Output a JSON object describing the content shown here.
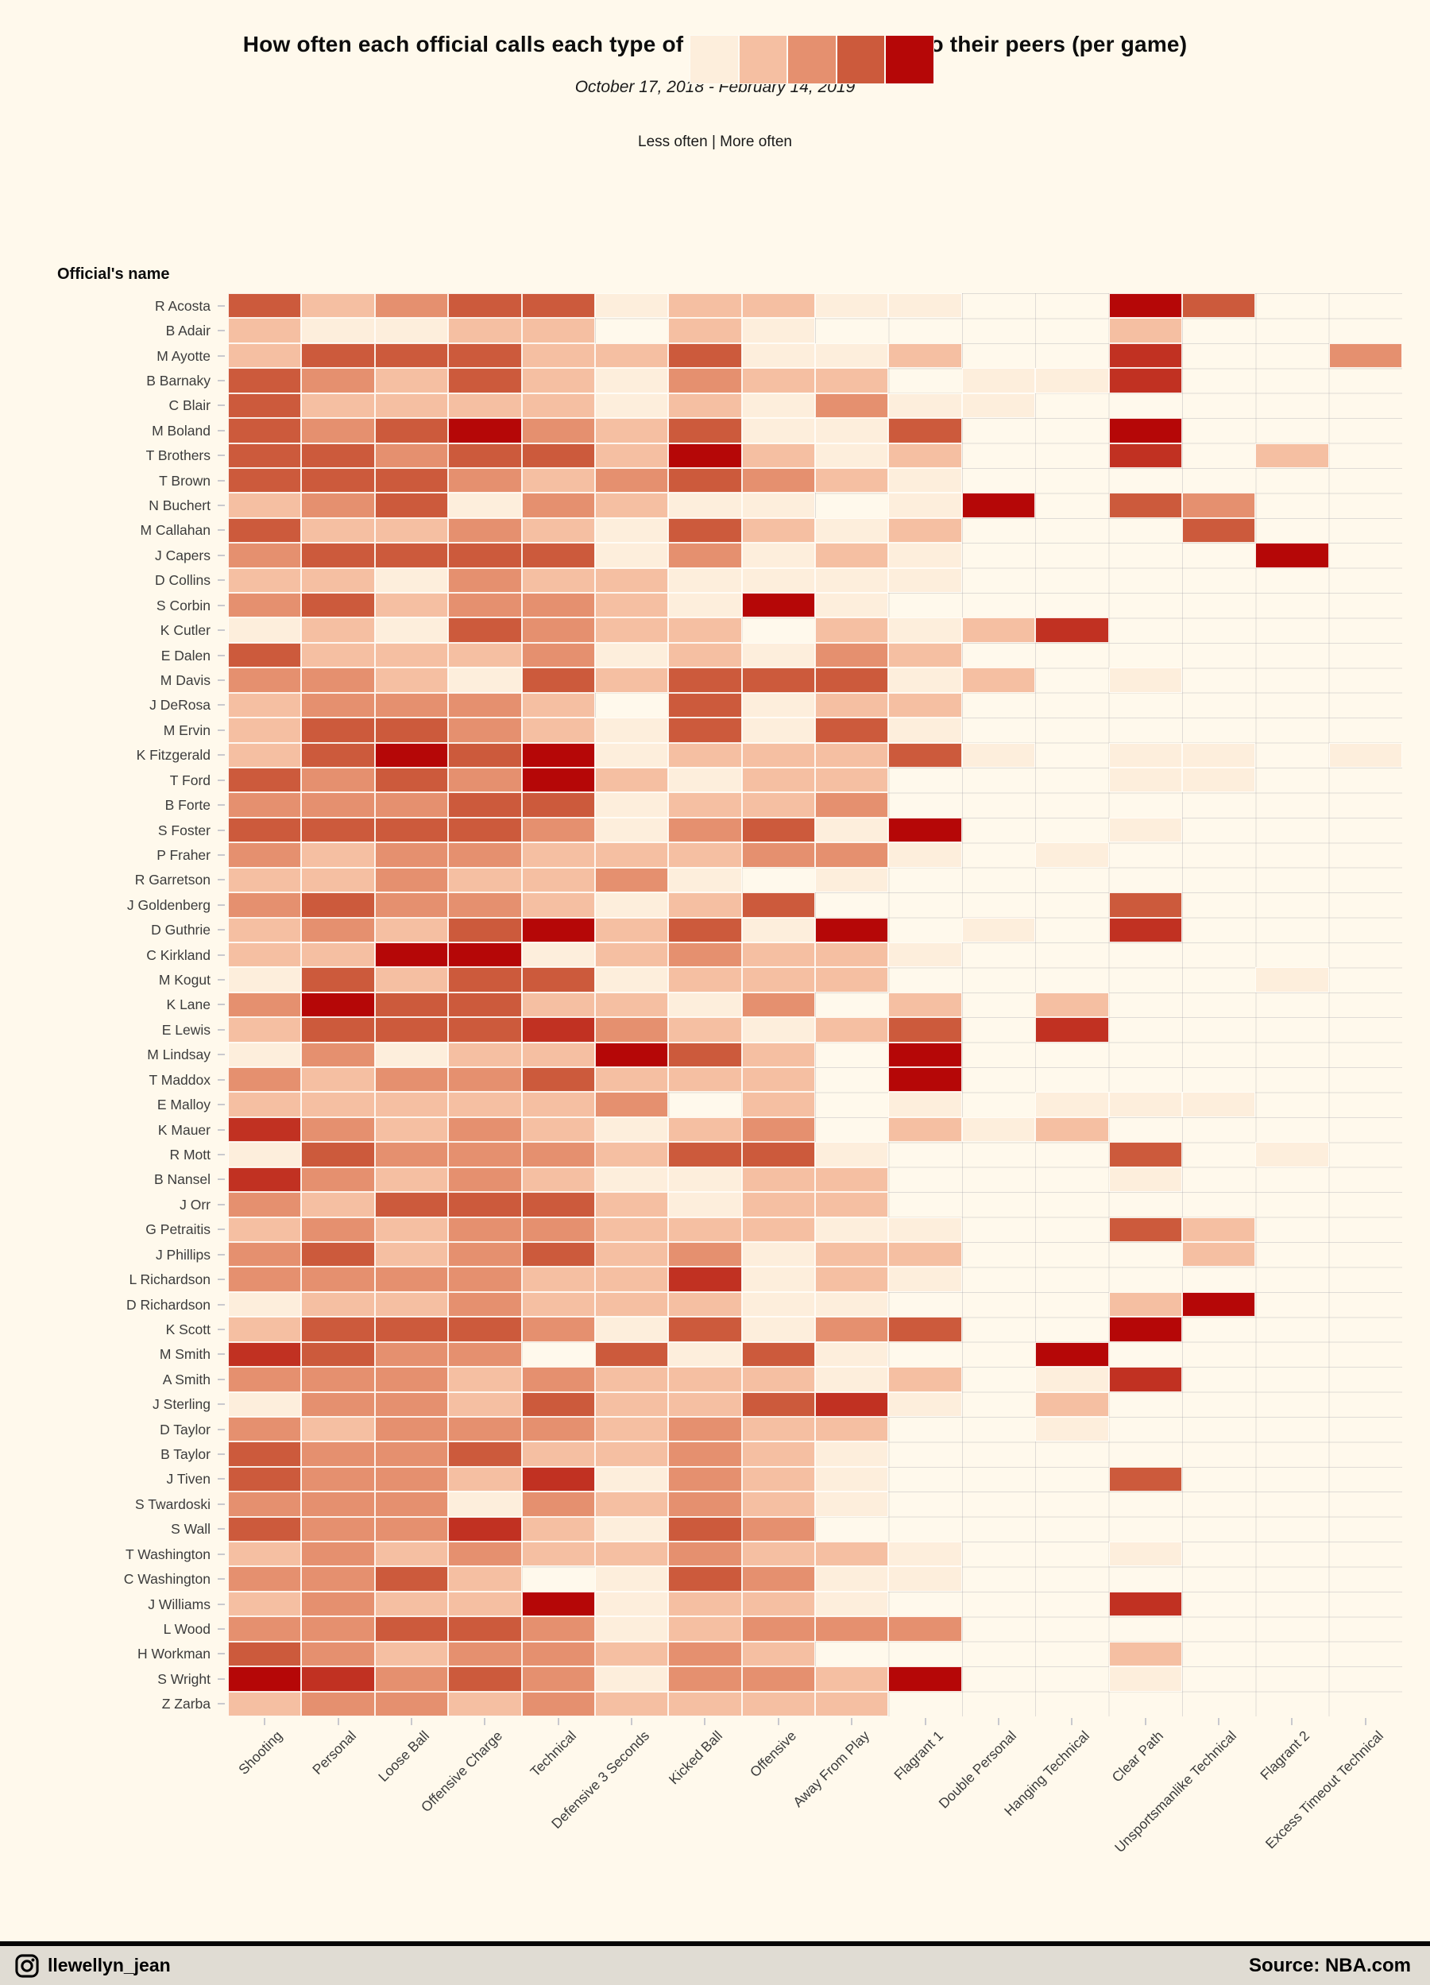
{
  "header": {
    "title": "How often each official calls each type of foul/violation relative to their peers (per game)",
    "subtitle": "October 17, 2018 - February 14, 2019"
  },
  "legend": {
    "label": "Less often | More often",
    "colors": [
      "#FDEEDC",
      "#F5BFA2",
      "#E5906F",
      "#CC5A3C",
      "#B50707"
    ]
  },
  "footer": {
    "handle": "llewellyn_jean",
    "source": "Source: NBA.com"
  },
  "chart_data": {
    "type": "heatmap",
    "title": "How often each official calls each type of foul/violation relative to their peers (per game)",
    "subtitle": "October 17, 2018 - February 14, 2019",
    "ylabel": "Official's name",
    "legend_label": "Less often | More often",
    "value_scale": "0 = no calls shown (empty), 1 = far less often than peers, 5 = far more often than peers",
    "columns": [
      "Shooting",
      "Personal",
      "Loose Ball",
      "Offensive Charge",
      "Technical",
      "Defensive 3 Seconds",
      "Kicked Ball",
      "Offensive",
      "Away From Play",
      "Flagrant 1",
      "Double Personal",
      "Hanging Technical",
      "Clear Path",
      "Unsportsmanlike Technical",
      "Flagrant 2",
      "Excess Timeout Technical"
    ],
    "rows": [
      "R Acosta",
      "B Adair",
      "M Ayotte",
      "B Barnaky",
      "C Blair",
      "M Boland",
      "T Brothers",
      "T Brown",
      "N Buchert",
      "M Callahan",
      "J Capers",
      "D Collins",
      "S Corbin",
      "K Cutler",
      "E Dalen",
      "M Davis",
      "J DeRosa",
      "M Ervin",
      "K Fitzgerald",
      "T Ford",
      "B Forte",
      "S Foster",
      "P Fraher",
      "R Garretson",
      "J Goldenberg",
      "D Guthrie",
      "C Kirkland",
      "M Kogut",
      "K Lane",
      "E Lewis",
      "M Lindsay",
      "T Maddox",
      "E Malloy",
      "K Mauer",
      "R Mott",
      "B Nansel",
      "J Orr",
      "G Petraitis",
      "J Phillips",
      "L Richardson",
      "D Richardson",
      "K Scott",
      "M Smith",
      "A Smith",
      "J Sterling",
      "D Taylor",
      "B Taylor",
      "J Tiven",
      "S Twardoski",
      "S Wall",
      "T Washington",
      "C Washington",
      "J Williams",
      "L Wood",
      "H Workman",
      "S Wright",
      "Z Zarba"
    ],
    "matrix": [
      [
        4,
        2,
        3,
        4,
        4,
        1,
        2,
        2,
        1,
        1,
        0,
        0,
        5,
        4,
        0,
        0
      ],
      [
        2,
        1,
        1,
        2,
        2,
        0,
        2,
        1,
        0,
        0,
        0,
        0,
        2,
        0,
        0,
        0
      ],
      [
        2,
        4,
        4,
        4,
        2,
        2,
        4,
        1,
        1,
        2,
        0,
        0,
        4.5,
        0,
        0,
        3
      ],
      [
        4,
        3,
        2,
        4,
        2,
        1,
        3,
        2,
        2,
        0,
        1,
        1,
        4.5,
        0,
        0,
        0
      ],
      [
        4,
        2,
        2,
        2,
        2,
        1,
        2,
        1,
        3,
        1,
        1,
        0,
        0,
        0,
        0,
        0
      ],
      [
        4,
        3,
        4,
        5,
        3,
        2,
        4,
        1,
        1,
        4,
        0,
        0,
        5,
        0,
        0,
        0
      ],
      [
        4,
        4,
        3,
        4,
        4,
        2,
        5,
        2,
        1,
        2,
        0,
        0,
        4.5,
        0,
        2,
        0
      ],
      [
        4,
        4,
        4,
        3,
        2,
        3,
        4,
        3,
        2,
        1,
        0,
        0,
        0,
        0,
        0,
        0
      ],
      [
        2,
        3,
        4,
        1,
        3,
        2,
        1,
        1,
        0,
        1,
        5,
        0,
        4,
        3,
        0,
        0
      ],
      [
        4,
        2,
        2,
        3,
        2,
        1,
        4,
        2,
        1,
        2,
        0,
        0,
        0,
        4,
        0,
        0
      ],
      [
        3,
        4,
        4,
        4,
        4,
        1,
        3,
        1,
        2,
        1,
        0,
        0,
        0,
        0,
        5,
        0
      ],
      [
        2,
        2,
        1,
        3,
        2,
        2,
        1,
        1,
        1,
        1,
        0,
        0,
        0,
        0,
        0,
        0
      ],
      [
        3,
        4,
        2,
        3,
        3,
        2,
        1,
        5,
        1,
        0,
        0,
        0,
        0,
        0,
        0,
        0
      ],
      [
        1,
        2,
        1,
        4,
        3,
        2,
        2,
        0,
        2,
        1,
        2,
        4.5,
        0,
        0,
        0,
        0
      ],
      [
        4,
        2,
        2,
        2,
        3,
        1,
        2,
        1,
        3,
        2,
        0,
        0,
        0,
        0,
        0,
        0
      ],
      [
        3,
        3,
        2,
        1,
        4,
        2,
        4,
        4,
        4,
        1,
        2,
        0,
        1,
        0,
        0,
        0
      ],
      [
        2,
        3,
        3,
        3,
        2,
        0,
        4,
        1,
        2,
        2,
        0,
        0,
        0,
        0,
        0,
        0
      ],
      [
        2,
        4,
        4,
        3,
        2,
        1,
        4,
        1,
        4,
        1,
        0,
        0,
        0,
        0,
        0,
        0
      ],
      [
        2,
        4,
        5,
        4,
        5,
        1,
        2,
        2,
        2,
        4,
        1,
        0,
        1,
        1,
        0,
        1
      ],
      [
        4,
        3,
        4,
        3,
        5,
        2,
        1,
        2,
        2,
        0,
        0,
        0,
        1,
        1,
        0,
        0
      ],
      [
        3,
        3,
        3,
        4,
        4,
        1,
        2,
        2,
        3,
        0,
        0,
        0,
        0,
        0,
        0,
        0
      ],
      [
        4,
        4,
        4,
        4,
        3,
        1,
        3,
        4,
        1,
        5,
        0,
        0,
        1,
        0,
        0,
        0
      ],
      [
        3,
        2,
        3,
        3,
        2,
        2,
        2,
        3,
        3,
        1,
        0,
        1,
        0,
        0,
        0,
        0
      ],
      [
        2,
        2,
        3,
        2,
        2,
        3,
        1,
        0,
        1,
        0,
        0,
        0,
        0,
        0,
        0,
        0
      ],
      [
        3,
        4,
        3,
        3,
        2,
        1,
        2,
        4,
        0,
        0,
        0,
        0,
        4,
        0,
        0,
        0
      ],
      [
        2,
        3,
        2,
        4,
        5,
        2,
        4,
        1,
        5,
        0,
        1,
        0,
        4.5,
        0,
        0,
        0
      ],
      [
        2,
        2,
        5,
        5,
        1,
        2,
        3,
        2,
        2,
        1,
        0,
        0,
        0,
        0,
        0,
        0
      ],
      [
        1,
        4,
        2,
        4,
        4,
        1,
        2,
        2,
        2,
        0,
        0,
        0,
        0,
        0,
        1,
        0
      ],
      [
        3,
        5,
        4,
        4,
        2,
        2,
        1,
        3,
        0,
        2,
        0,
        2,
        0,
        0,
        0,
        0
      ],
      [
        2,
        4,
        4,
        4,
        4.5,
        3,
        2,
        1,
        2,
        4,
        0,
        4.5,
        0,
        0,
        0,
        0
      ],
      [
        1,
        3,
        1,
        2,
        2,
        5,
        4,
        2,
        0,
        5,
        0,
        0,
        0,
        0,
        0,
        0
      ],
      [
        3,
        2,
        3,
        3,
        4,
        2,
        2,
        2,
        0,
        5,
        0,
        0,
        0,
        0,
        0,
        0
      ],
      [
        2,
        2,
        2,
        2,
        2,
        3,
        0,
        2,
        0,
        1,
        0,
        1,
        1,
        1,
        0,
        0
      ],
      [
        4.5,
        3,
        2,
        3,
        2,
        1,
        2,
        3,
        0,
        2,
        1,
        2,
        0,
        0,
        0,
        0
      ],
      [
        1,
        4,
        3,
        3,
        3,
        2,
        4,
        4,
        1,
        0,
        0,
        0,
        4,
        0,
        1,
        0
      ],
      [
        4.5,
        3,
        2,
        3,
        2,
        1,
        1,
        2,
        2,
        0,
        0,
        0,
        1,
        0,
        0,
        0
      ],
      [
        3,
        2,
        4,
        4,
        4,
        2,
        1,
        2,
        2,
        0,
        0,
        0,
        0,
        0,
        0,
        0
      ],
      [
        2,
        3,
        2,
        3,
        3,
        2,
        2,
        2,
        1,
        1,
        0,
        0,
        4,
        2,
        0,
        0
      ],
      [
        3,
        4,
        2,
        3,
        4,
        2,
        3,
        1,
        2,
        2,
        0,
        0,
        0,
        2,
        0,
        0
      ],
      [
        3,
        3,
        3,
        3,
        2,
        2,
        4.5,
        1,
        2,
        1,
        0,
        0,
        0,
        0,
        0,
        0
      ],
      [
        1,
        2,
        2,
        3,
        2,
        2,
        2,
        1,
        1,
        0,
        0,
        0,
        2,
        5,
        0,
        0
      ],
      [
        2,
        4,
        4,
        4,
        3,
        1,
        4,
        1,
        3,
        4,
        0,
        0,
        5,
        0,
        0,
        0
      ],
      [
        4.5,
        4,
        3,
        3,
        0,
        4,
        1,
        4,
        1,
        0,
        0,
        5,
        0,
        0,
        0,
        0
      ],
      [
        3,
        3,
        3,
        2,
        3,
        2,
        2,
        2,
        1,
        2,
        0,
        1,
        4.5,
        0,
        0,
        0
      ],
      [
        1,
        3,
        3,
        2,
        4,
        2,
        2,
        4,
        4.5,
        1,
        0,
        2,
        0,
        0,
        0,
        0
      ],
      [
        3,
        2,
        3,
        3,
        3,
        2,
        3,
        2,
        2,
        0,
        0,
        1,
        0,
        0,
        0,
        0
      ],
      [
        4,
        3,
        3,
        4,
        2,
        2,
        3,
        2,
        1,
        0,
        0,
        0,
        0,
        0,
        0,
        0
      ],
      [
        4,
        3,
        3,
        2,
        4.5,
        1,
        3,
        2,
        1,
        0,
        0,
        0,
        4,
        0,
        0,
        0
      ],
      [
        3,
        3,
        3,
        1,
        3,
        2,
        3,
        2,
        1,
        0,
        0,
        0,
        0,
        0,
        0,
        0
      ],
      [
        4,
        3,
        3,
        4.5,
        2,
        1,
        4,
        3,
        0,
        0,
        0,
        0,
        0,
        0,
        0,
        0
      ],
      [
        2,
        3,
        2,
        3,
        2,
        2,
        3,
        2,
        2,
        1,
        0,
        0,
        1,
        0,
        0,
        0
      ],
      [
        3,
        3,
        4,
        2,
        0,
        1,
        4,
        3,
        1,
        1,
        0,
        0,
        0,
        0,
        0,
        0
      ],
      [
        2,
        3,
        2,
        2,
        5,
        1,
        2,
        2,
        1,
        0,
        0,
        0,
        4.5,
        0,
        0,
        0
      ],
      [
        3,
        3,
        4,
        4,
        3,
        1,
        2,
        3,
        3,
        3,
        0,
        0,
        0,
        0,
        0,
        0
      ],
      [
        4,
        3,
        2,
        3,
        3,
        2,
        3,
        2,
        0,
        0,
        0,
        0,
        2,
        0,
        0,
        0
      ],
      [
        5,
        4.5,
        3,
        4,
        3,
        1,
        3,
        3,
        2,
        5,
        0,
        0,
        1,
        0,
        0,
        0
      ],
      [
        2,
        3,
        3,
        2,
        3,
        2,
        2,
        2,
        2,
        0,
        0,
        0,
        0,
        0,
        0,
        0
      ]
    ],
    "grid": true,
    "legend_position": "top-center"
  }
}
